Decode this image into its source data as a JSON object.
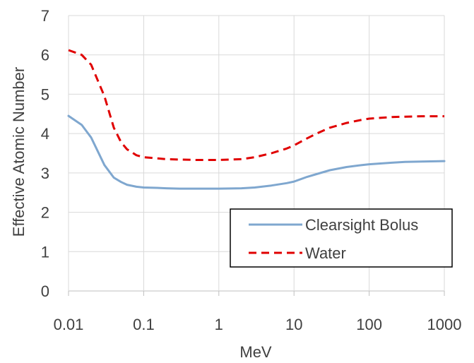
{
  "chart_data": {
    "type": "line",
    "title": "",
    "xlabel": "MeV",
    "ylabel": "Effective Atomic Number",
    "x_scale": "log",
    "xlim": [
      0.01,
      1000
    ],
    "ylim": [
      0,
      7
    ],
    "x_ticks": [
      0.01,
      0.1,
      1,
      10,
      100,
      1000
    ],
    "x_tick_labels": [
      "0.01",
      "0.1",
      "1",
      "10",
      "100",
      "1000"
    ],
    "y_ticks": [
      0,
      1,
      2,
      3,
      4,
      5,
      6,
      7
    ],
    "y_tick_labels": [
      "0",
      "1",
      "2",
      "3",
      "4",
      "5",
      "6",
      "7"
    ],
    "grid": true,
    "legend_position": "bottom-right",
    "series": [
      {
        "name": "Clearsight Bolus",
        "color": "#7fa7cf",
        "dash": "solid",
        "x": [
          0.01,
          0.015,
          0.02,
          0.03,
          0.04,
          0.05,
          0.06,
          0.08,
          0.1,
          0.15,
          0.2,
          0.3,
          0.5,
          1,
          2,
          3,
          5,
          8,
          10,
          15,
          20,
          30,
          50,
          80,
          100,
          200,
          300,
          500,
          1000
        ],
        "values": [
          4.45,
          4.22,
          3.9,
          3.2,
          2.88,
          2.77,
          2.7,
          2.65,
          2.63,
          2.62,
          2.61,
          2.6,
          2.6,
          2.6,
          2.61,
          2.63,
          2.68,
          2.74,
          2.78,
          2.9,
          2.97,
          3.07,
          3.15,
          3.2,
          3.22,
          3.26,
          3.28,
          3.29,
          3.3
        ]
      },
      {
        "name": "Water",
        "color": "#e00000",
        "dash": "dashed",
        "x": [
          0.01,
          0.015,
          0.02,
          0.03,
          0.04,
          0.05,
          0.06,
          0.08,
          0.1,
          0.15,
          0.2,
          0.3,
          0.5,
          1,
          2,
          3,
          5,
          8,
          10,
          15,
          20,
          30,
          50,
          80,
          100,
          200,
          300,
          500,
          1000
        ],
        "values": [
          6.12,
          6.0,
          5.75,
          4.95,
          4.15,
          3.78,
          3.6,
          3.45,
          3.4,
          3.37,
          3.35,
          3.34,
          3.33,
          3.33,
          3.35,
          3.4,
          3.5,
          3.62,
          3.7,
          3.88,
          4.0,
          4.15,
          4.27,
          4.35,
          4.38,
          4.42,
          4.43,
          4.44,
          4.44
        ]
      }
    ]
  }
}
